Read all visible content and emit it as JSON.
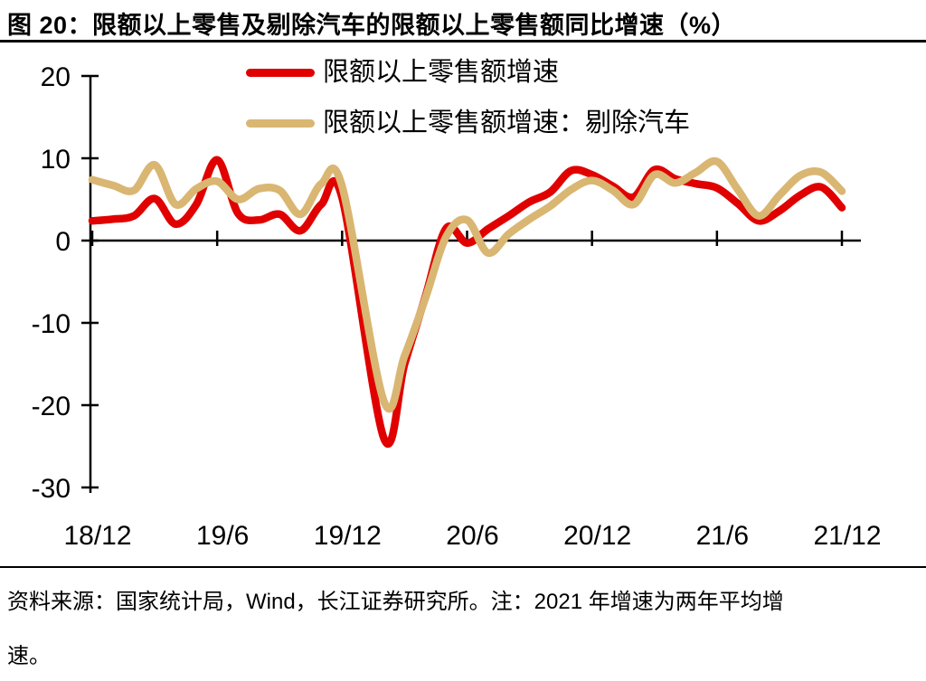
{
  "title": "图 20：限额以上零售及剔除汽车的限额以上零售额同比增速（%）",
  "footer": {
    "line1": "资料来源：国家统计局，Wind，长江证券研究所。注：2021 年增速为两年平均增",
    "line2": "速。"
  },
  "colors": {
    "background": "#ffffff",
    "axis": "#000000",
    "rule": "#000000",
    "series_red": "#e00000",
    "series_tan": "#d9b672"
  },
  "chart_data": {
    "type": "line",
    "title": "限额以上零售及剔除汽车的限额以上零售额同比增速（%）",
    "xlabel": "",
    "ylabel": "",
    "ylim": [
      -30,
      20
    ],
    "grid": false,
    "legend_position": "top-center",
    "y_ticks": [
      "20",
      "10",
      "0",
      "-10",
      "-20",
      "-30"
    ],
    "x_tick_labels": [
      "18/12",
      "19/6",
      "19/12",
      "20/6",
      "20/12",
      "21/6",
      "21/12"
    ],
    "x_months": [
      "18/12",
      "19/1",
      "19/2",
      "19/3",
      "19/4",
      "19/5",
      "19/6",
      "19/7",
      "19/8",
      "19/9",
      "19/10",
      "19/11",
      "19/12",
      "20/1",
      "20/2",
      "20/3",
      "20/4",
      "20/5",
      "20/6",
      "20/7",
      "20/8",
      "20/9",
      "20/10",
      "20/11",
      "20/12",
      "21/1",
      "21/2",
      "21/3",
      "21/4",
      "21/5",
      "21/6",
      "21/7",
      "21/8",
      "21/9",
      "21/10",
      "21/11",
      "21/12"
    ],
    "series": [
      {
        "name": "限额以上零售额增速",
        "color": "#e00000",
        "values": [
          2.4,
          2.6,
          3.0,
          5.1,
          2.0,
          4.4,
          9.8,
          3.3,
          2.5,
          3.2,
          1.2,
          4.4,
          5.2,
          null,
          -24.0,
          -15.0,
          -6.8,
          1.5,
          -0.3,
          1.4,
          3.0,
          4.7,
          5.9,
          8.5,
          8.0,
          6.6,
          5.3,
          8.6,
          7.5,
          6.9,
          6.4,
          4.5,
          2.4,
          3.6,
          5.5,
          6.5,
          4.0
        ]
      },
      {
        "name": "限额以上零售额增速：剔除汽车",
        "color": "#d9b672",
        "values": [
          7.4,
          6.7,
          6.1,
          9.2,
          4.4,
          6.3,
          7.2,
          5.0,
          6.3,
          6.1,
          3.2,
          6.9,
          6.6,
          null,
          -19.5,
          -14.0,
          -7.0,
          0.5,
          2.5,
          -1.5,
          0.8,
          2.6,
          4.2,
          6.2,
          7.3,
          6.1,
          4.4,
          8.0,
          7.0,
          8.3,
          9.6,
          6.2,
          3.0,
          5.5,
          7.9,
          8.3,
          6.0
        ]
      }
    ]
  }
}
